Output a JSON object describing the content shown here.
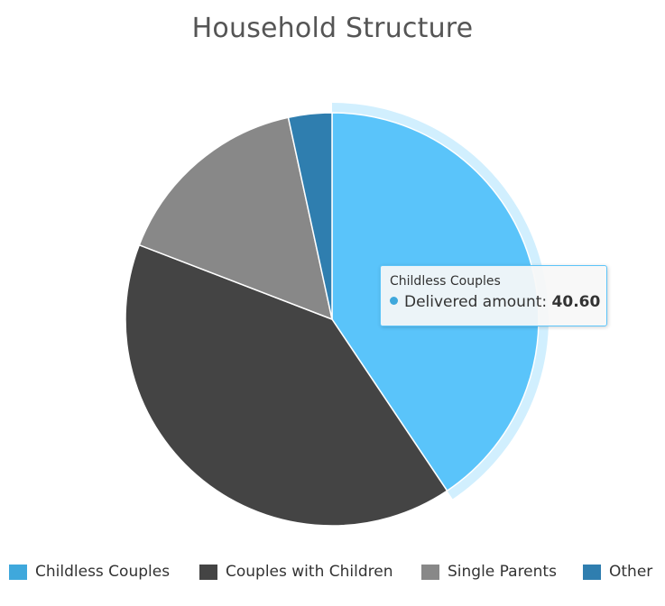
{
  "chart_data": {
    "type": "pie",
    "title": "Household Structure",
    "series_name": "Delivered amount",
    "slices": [
      {
        "label": "Childless Couples",
        "value": 40.6,
        "color": "#5ac4fa"
      },
      {
        "label": "Couples with Children",
        "value": 40.25,
        "color": "#444444"
      },
      {
        "label": "Single Parents",
        "value": 15.75,
        "color": "#888888"
      },
      {
        "label": "Other",
        "value": 3.4,
        "color": "#2f7eaf"
      }
    ],
    "highlighted": "Childless Couples",
    "legend_position": "bottom"
  },
  "tooltip": {
    "header": "Childless Couples",
    "series": "Delivered amount",
    "value": "40.60",
    "dot_color": "#3fa8dc"
  },
  "legend": {
    "items": [
      {
        "label": "Childless Couples",
        "color": "#3fa8dc"
      },
      {
        "label": "Couples with Children",
        "color": "#444444"
      },
      {
        "label": "Single Parents",
        "color": "#888888"
      },
      {
        "label": "Other",
        "color": "#2f7eaf"
      }
    ]
  }
}
